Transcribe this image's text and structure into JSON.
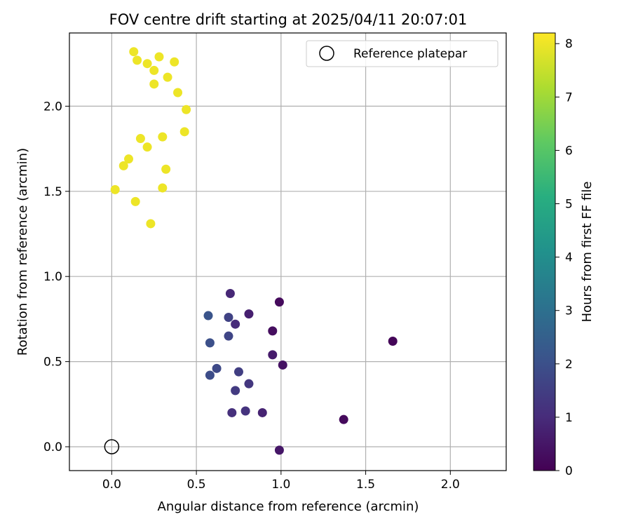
{
  "chart_data": {
    "type": "scatter",
    "title": "FOV centre drift starting at 2025/04/11 20:07:01",
    "xlabel": "Angular distance from reference (arcmin)",
    "ylabel": "Rotation from reference (arcmin)",
    "xlim": [
      -0.25,
      2.33
    ],
    "ylim": [
      -0.14,
      2.43
    ],
    "xticks": [
      0.0,
      0.5,
      1.0,
      1.5,
      2.0
    ],
    "xtick_labels": [
      "0.0",
      "0.5",
      "1.0",
      "1.5",
      "2.0"
    ],
    "yticks": [
      0.0,
      0.5,
      1.0,
      1.5,
      2.0
    ],
    "ytick_labels": [
      "0.0",
      "0.5",
      "1.0",
      "1.5",
      "2.0"
    ],
    "grid": true,
    "legend": {
      "position": "top-right",
      "entries": [
        "Reference platepar"
      ]
    },
    "reference_point": {
      "x": 0.0,
      "y": 0.0,
      "marker": "open-circle",
      "label": "Reference platepar"
    },
    "colorbar": {
      "label": "Hours from first FF file",
      "colormap": "viridis",
      "range": [
        0,
        8.2
      ],
      "ticks": [
        0,
        1,
        2,
        3,
        4,
        5,
        6,
        7,
        8
      ],
      "tick_labels": [
        "0",
        "1",
        "2",
        "3",
        "4",
        "5",
        "6",
        "7",
        "8"
      ]
    },
    "points": [
      {
        "x": 1.66,
        "y": 0.62,
        "hours": 0.1
      },
      {
        "x": 1.37,
        "y": 0.16,
        "hours": 0.2
      },
      {
        "x": 0.99,
        "y": 0.85,
        "hours": 0.2
      },
      {
        "x": 0.95,
        "y": 0.68,
        "hours": 0.3
      },
      {
        "x": 1.01,
        "y": 0.48,
        "hours": 0.4
      },
      {
        "x": 0.99,
        "y": -0.02,
        "hours": 0.5
      },
      {
        "x": 0.95,
        "y": 0.54,
        "hours": 0.6
      },
      {
        "x": 0.81,
        "y": 0.78,
        "hours": 0.7
      },
      {
        "x": 0.89,
        "y": 0.2,
        "hours": 0.8
      },
      {
        "x": 0.7,
        "y": 0.9,
        "hours": 0.9
      },
      {
        "x": 0.73,
        "y": 0.72,
        "hours": 1.0
      },
      {
        "x": 0.71,
        "y": 0.2,
        "hours": 1.1
      },
      {
        "x": 0.79,
        "y": 0.21,
        "hours": 1.2
      },
      {
        "x": 0.81,
        "y": 0.37,
        "hours": 1.3
      },
      {
        "x": 0.73,
        "y": 0.33,
        "hours": 1.4
      },
      {
        "x": 0.75,
        "y": 0.44,
        "hours": 1.5
      },
      {
        "x": 0.69,
        "y": 0.76,
        "hours": 1.6
      },
      {
        "x": 0.69,
        "y": 0.65,
        "hours": 1.7
      },
      {
        "x": 0.62,
        "y": 0.46,
        "hours": 1.8
      },
      {
        "x": 0.58,
        "y": 0.42,
        "hours": 1.9
      },
      {
        "x": 0.58,
        "y": 0.61,
        "hours": 2.0
      },
      {
        "x": 0.57,
        "y": 0.77,
        "hours": 2.1
      },
      {
        "x": 0.13,
        "y": 2.32,
        "hours": 8.0
      },
      {
        "x": 0.15,
        "y": 2.27,
        "hours": 8.0
      },
      {
        "x": 0.21,
        "y": 2.25,
        "hours": 8.0
      },
      {
        "x": 0.28,
        "y": 2.29,
        "hours": 8.0
      },
      {
        "x": 0.37,
        "y": 2.26,
        "hours": 8.0
      },
      {
        "x": 0.25,
        "y": 2.21,
        "hours": 8.0
      },
      {
        "x": 0.33,
        "y": 2.17,
        "hours": 8.0
      },
      {
        "x": 0.25,
        "y": 2.13,
        "hours": 8.0
      },
      {
        "x": 0.39,
        "y": 2.08,
        "hours": 8.0
      },
      {
        "x": 0.44,
        "y": 1.98,
        "hours": 8.0
      },
      {
        "x": 0.43,
        "y": 1.85,
        "hours": 8.0
      },
      {
        "x": 0.3,
        "y": 1.82,
        "hours": 8.0
      },
      {
        "x": 0.17,
        "y": 1.81,
        "hours": 8.0
      },
      {
        "x": 0.21,
        "y": 1.76,
        "hours": 8.0
      },
      {
        "x": 0.1,
        "y": 1.69,
        "hours": 8.0
      },
      {
        "x": 0.07,
        "y": 1.65,
        "hours": 8.0
      },
      {
        "x": 0.32,
        "y": 1.63,
        "hours": 8.0
      },
      {
        "x": 0.02,
        "y": 1.51,
        "hours": 8.0
      },
      {
        "x": 0.3,
        "y": 1.52,
        "hours": 8.0
      },
      {
        "x": 0.14,
        "y": 1.44,
        "hours": 8.0
      },
      {
        "x": 0.23,
        "y": 1.31,
        "hours": 8.0
      }
    ]
  }
}
